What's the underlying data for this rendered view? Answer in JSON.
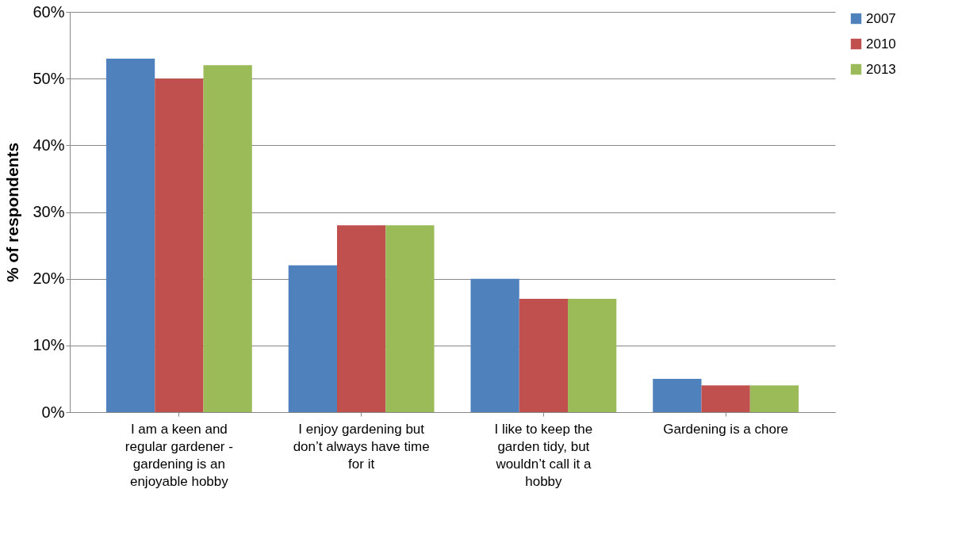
{
  "chart_data": {
    "type": "bar",
    "ylabel": "% of respondents",
    "categories": [
      "I am a keen and regular gardener - gardening is an enjoyable hobby",
      "I enjoy gardening but don’t always have time for it",
      "I like to keep the garden tidy, but wouldn’t call it a hobby",
      "Gardening is a chore"
    ],
    "series": [
      {
        "name": "2007",
        "color": "#4f81bd",
        "values": [
          53,
          22,
          20,
          5
        ]
      },
      {
        "name": "2010",
        "color": "#c0504d",
        "values": [
          50,
          28,
          17,
          4
        ]
      },
      {
        "name": "2013",
        "color": "#9bbb59",
        "values": [
          52,
          28,
          17,
          4
        ]
      }
    ],
    "ylim": [
      0,
      60
    ],
    "yticks": [
      {
        "value": 0,
        "label": "0%"
      },
      {
        "value": 10,
        "label": "10%"
      },
      {
        "value": 20,
        "label": "20%"
      },
      {
        "value": 30,
        "label": "30%"
      },
      {
        "value": 40,
        "label": "40%"
      },
      {
        "value": 50,
        "label": "50%"
      },
      {
        "value": 60,
        "label": "60%"
      }
    ],
    "grid": "y",
    "legend": "right"
  }
}
